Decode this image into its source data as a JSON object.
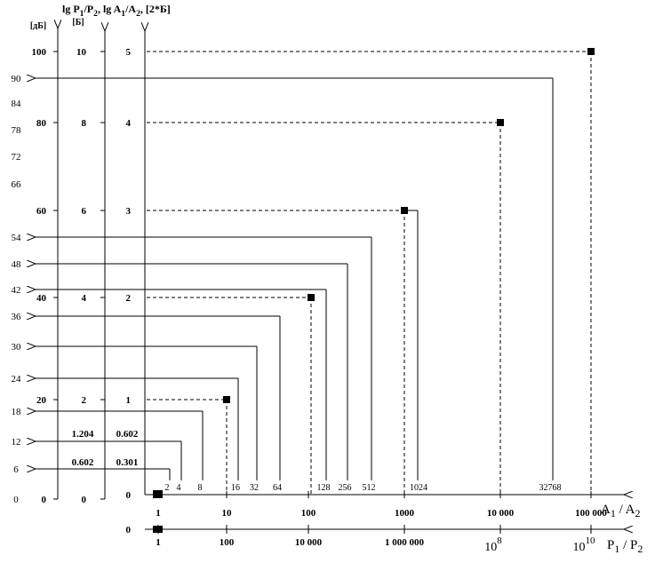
{
  "header": {
    "title_parts": [
      "lg P",
      "1",
      "/P",
      "2",
      ", lg A",
      "1",
      "/A",
      "2",
      ", [2*Б]"
    ],
    "b_unit": "[Б]",
    "db_unit": "[дБ]"
  },
  "db_axis": {
    "major": [
      "100",
      "80",
      "60",
      "40",
      "20",
      "0"
    ],
    "minor": [
      "90",
      "84",
      "78",
      "72",
      "66",
      "54",
      "48",
      "42",
      "36",
      "30",
      "24",
      "18",
      "12",
      "6",
      "0"
    ]
  },
  "bel_axis": {
    "labels": [
      "10",
      "8",
      "6",
      "4",
      "2",
      "0"
    ],
    "extra": [
      "1.204",
      "0.602"
    ]
  },
  "amp_axis": {
    "labels": [
      "5",
      "4",
      "3",
      "2",
      "1",
      "0"
    ],
    "extra": [
      "0.602",
      "0.301"
    ]
  },
  "a_axis": {
    "label_parts": [
      "A",
      "1",
      " / A",
      "2"
    ],
    "ticks": [
      "1",
      "10",
      "100",
      "1000",
      "10 000",
      "100 000"
    ],
    "powers": [
      "2",
      "4",
      "8",
      "16",
      "32",
      "64",
      "128",
      "256",
      "512",
      "1024",
      "32768"
    ]
  },
  "p_axis": {
    "label_parts": [
      "P",
      "1",
      " / P",
      "2"
    ],
    "zero": "0",
    "ticks": [
      "1",
      "100",
      "10 000",
      "1 000 000"
    ],
    "powers": [
      {
        "base": "10",
        "exp": "8"
      },
      {
        "base": "10",
        "exp": "10"
      }
    ]
  }
}
